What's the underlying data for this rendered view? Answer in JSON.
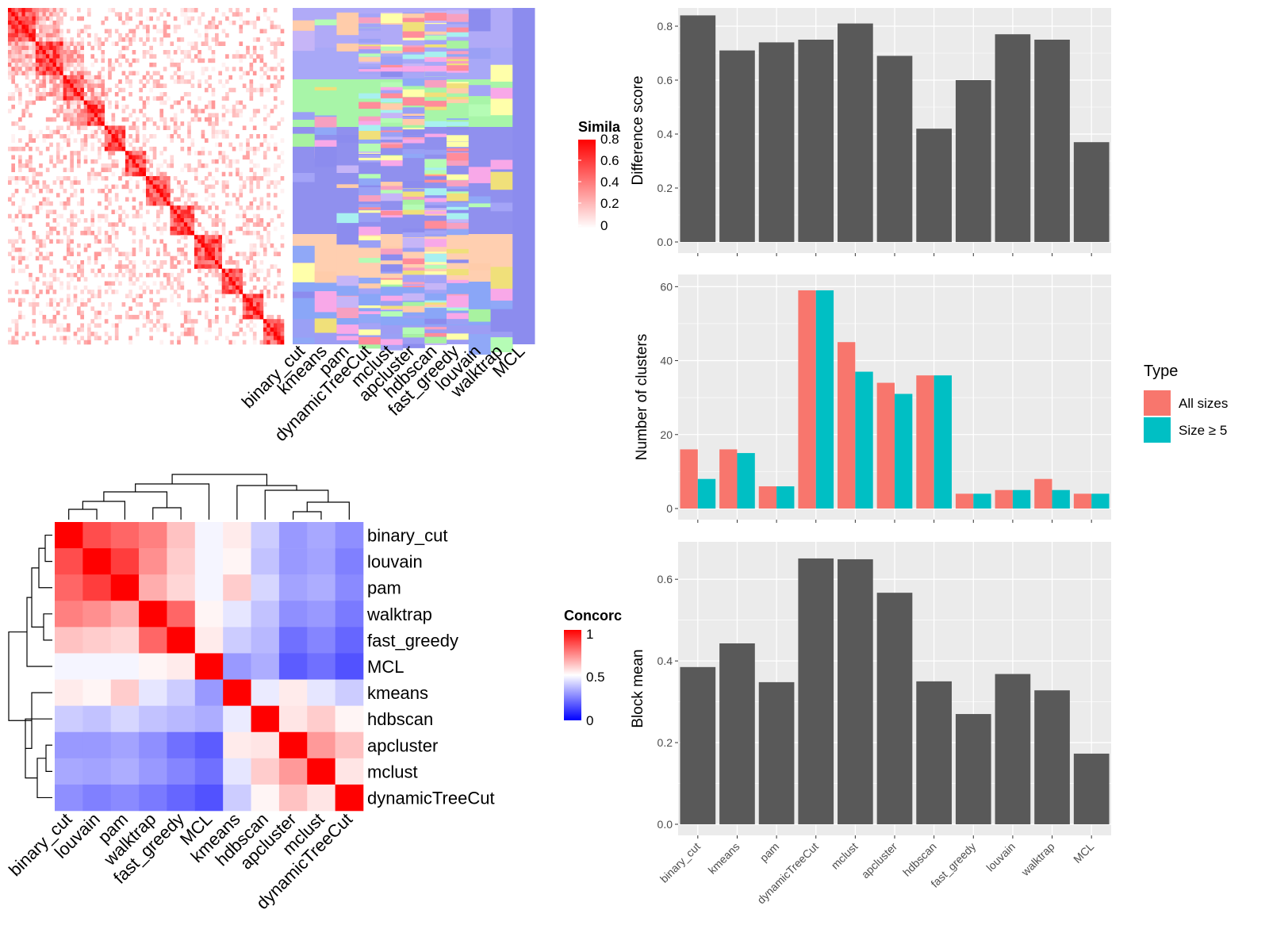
{
  "colors": {
    "panel_bg": "#ebebeb",
    "bar_dark": "#595959",
    "all_sizes": "#F8766D",
    "size5": "#00BFC4",
    "heat_high": "#ff0000",
    "heat_mid": "#ffffff",
    "heat_low": "#0000ff"
  },
  "methods": [
    "binary_cut",
    "kmeans",
    "pam",
    "dynamicTreeCut",
    "mclust",
    "apcluster",
    "hdbscan",
    "fast_greedy",
    "louvain",
    "walktrap",
    "MCL"
  ],
  "chart_data": [
    {
      "id": "similarity_heatmap",
      "type": "heatmap",
      "legend": {
        "title": "Similarity",
        "title_visible": "Simila",
        "ticks": [
          "0",
          "0.2",
          "0.4",
          "0.6",
          "0.8"
        ]
      }
    },
    {
      "id": "cluster_assignment_heatmap",
      "type": "heatmap",
      "columns": [
        "binary_cut",
        "kmeans",
        "pam",
        "dynamicTreeCut",
        "mclust",
        "apcluster",
        "hdbscan",
        "fast_greedy",
        "louvain",
        "walktrap",
        "MCL"
      ]
    },
    {
      "id": "concordance_heatmap",
      "type": "heatmap",
      "order": [
        "binary_cut",
        "louvain",
        "pam",
        "walktrap",
        "fast_greedy",
        "MCL",
        "kmeans",
        "hdbscan",
        "apcluster",
        "mclust",
        "dynamicTreeCut"
      ],
      "values": [
        [
          1.0,
          0.85,
          0.8,
          0.75,
          0.62,
          0.48,
          0.54,
          0.4,
          0.3,
          0.33,
          0.28
        ],
        [
          0.85,
          1.0,
          0.88,
          0.72,
          0.6,
          0.48,
          0.52,
          0.38,
          0.3,
          0.32,
          0.25
        ],
        [
          0.8,
          0.88,
          1.0,
          0.66,
          0.58,
          0.48,
          0.6,
          0.42,
          0.32,
          0.34,
          0.27
        ],
        [
          0.75,
          0.72,
          0.66,
          1.0,
          0.8,
          0.52,
          0.45,
          0.38,
          0.28,
          0.3,
          0.24
        ],
        [
          0.62,
          0.6,
          0.58,
          0.8,
          1.0,
          0.54,
          0.4,
          0.36,
          0.22,
          0.26,
          0.2
        ],
        [
          0.48,
          0.48,
          0.48,
          0.52,
          0.54,
          1.0,
          0.3,
          0.34,
          0.18,
          0.22,
          0.16
        ],
        [
          0.54,
          0.52,
          0.6,
          0.45,
          0.4,
          0.3,
          1.0,
          0.46,
          0.54,
          0.45,
          0.4
        ],
        [
          0.4,
          0.38,
          0.42,
          0.38,
          0.36,
          0.34,
          0.46,
          1.0,
          0.55,
          0.6,
          0.52
        ],
        [
          0.3,
          0.3,
          0.32,
          0.28,
          0.22,
          0.18,
          0.54,
          0.55,
          1.0,
          0.7,
          0.62
        ],
        [
          0.33,
          0.32,
          0.34,
          0.3,
          0.26,
          0.22,
          0.45,
          0.6,
          0.7,
          1.0,
          0.55
        ],
        [
          0.28,
          0.25,
          0.27,
          0.24,
          0.2,
          0.16,
          0.4,
          0.52,
          0.62,
          0.55,
          1.0
        ]
      ],
      "legend": {
        "title": "Concordance",
        "title_visible": "Concorc",
        "ticks": [
          "0",
          "0.5",
          "1"
        ]
      }
    },
    {
      "id": "difference_score",
      "type": "bar",
      "categories": [
        "binary_cut",
        "kmeans",
        "pam",
        "dynamicTreeCut",
        "mclust",
        "apcluster",
        "hdbscan",
        "fast_greedy",
        "louvain",
        "walktrap",
        "MCL"
      ],
      "values": [
        0.84,
        0.71,
        0.74,
        0.75,
        0.81,
        0.69,
        0.42,
        0.6,
        0.77,
        0.75,
        0.37
      ],
      "ylabel": "Difference score",
      "ylim": [
        0,
        0.85
      ],
      "yticks": [
        "0.0",
        "0.2",
        "0.4",
        "0.6",
        "0.8"
      ]
    },
    {
      "id": "number_of_clusters",
      "type": "bar",
      "categories": [
        "binary_cut",
        "kmeans",
        "pam",
        "dynamicTreeCut",
        "mclust",
        "apcluster",
        "hdbscan",
        "fast_greedy",
        "louvain",
        "walktrap",
        "MCL"
      ],
      "series": [
        {
          "name": "All sizes",
          "values": [
            16,
            16,
            6,
            59,
            45,
            34,
            36,
            4,
            5,
            8,
            4
          ]
        },
        {
          "name": "Size ≥ 5",
          "values": [
            8,
            15,
            6,
            59,
            37,
            31,
            36,
            4,
            5,
            5,
            4
          ]
        }
      ],
      "ylabel": "Number of clusters",
      "ylim": [
        0,
        62
      ],
      "yticks": [
        "0",
        "20",
        "40",
        "60"
      ],
      "legend": {
        "title": "Type",
        "placement": "right"
      }
    },
    {
      "id": "block_mean",
      "type": "bar",
      "categories": [
        "binary_cut",
        "kmeans",
        "pam",
        "dynamicTreeCut",
        "mclust",
        "apcluster",
        "hdbscan",
        "fast_greedy",
        "louvain",
        "walktrap",
        "MCL"
      ],
      "values": [
        0.385,
        0.443,
        0.348,
        0.651,
        0.649,
        0.567,
        0.35,
        0.27,
        0.368,
        0.328,
        0.173
      ],
      "ylabel": "Block mean",
      "ylim": [
        0,
        0.68
      ],
      "yticks": [
        "0.0",
        "0.2",
        "0.4",
        "0.6"
      ]
    }
  ]
}
